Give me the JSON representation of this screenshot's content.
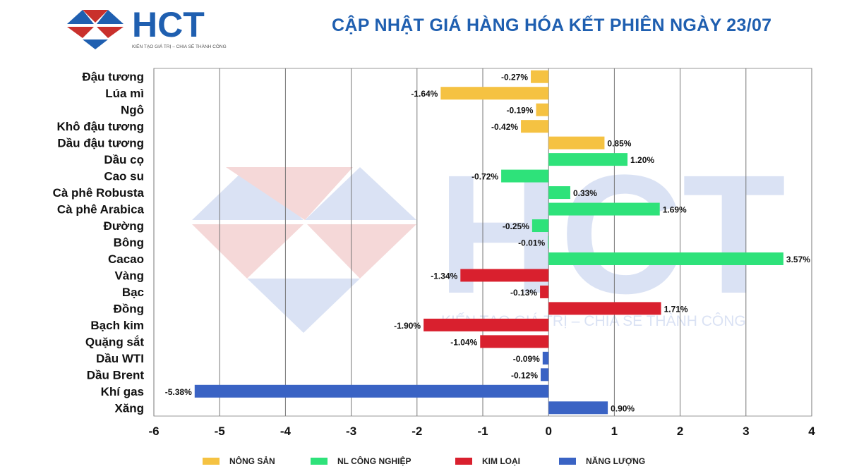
{
  "header": {
    "title": "CẬP NHẬT GIÁ HÀNG HÓA KẾT PHIÊN NGÀY 23/07",
    "logo_text": "HCT",
    "logo_slogan": "KIẾN TẠO GIÁ TRỊ – CHIA SẺ THÀNH CÔNG"
  },
  "watermark": {
    "text": "HCT",
    "slogan": "KIẾN TẠO GIÁ TRỊ – CHIA SẺ THÀNH CÔNG"
  },
  "colors": {
    "nong_san": "#f5c242",
    "nl_cong_nghiep": "#2ee27a",
    "kim_loai": "#d9202e",
    "nang_luong": "#3a63c4",
    "brand": "#1f5fb0",
    "brand_red": "#c9302c"
  },
  "legend": [
    {
      "label": "NÔNG SẢN",
      "group": "nong_san"
    },
    {
      "label": "NL CÔNG NGHIỆP",
      "group": "nl_cong_nghiep"
    },
    {
      "label": "KIM LOẠI",
      "group": "kim_loai"
    },
    {
      "label": "NĂNG LƯỢNG",
      "group": "nang_luong"
    }
  ],
  "chart_data": {
    "type": "bar",
    "orientation": "horizontal",
    "title": "CẬP NHẬT GIÁ HÀNG HÓA KẾT PHIÊN NGÀY 23/07",
    "xlabel": "",
    "ylabel": "",
    "xlim": [
      -6,
      4
    ],
    "xticks": [
      -6,
      -5,
      -4,
      -3,
      -2,
      -1,
      0,
      1,
      2,
      3,
      4
    ],
    "grid": "vertical",
    "legend_position": "bottom",
    "unit": "%",
    "categories": [
      "Đậu tương",
      "Lúa mì",
      "Ngô",
      "Khô đậu tương",
      "Dầu đậu tương",
      "Dầu cọ",
      "Cao su",
      "Cà phê Robusta",
      "Cà phê Arabica",
      "Đường",
      "Bông",
      "Cacao",
      "Vàng",
      "Bạc",
      "Đồng",
      "Bạch kim",
      "Quặng sắt",
      "Dầu WTI",
      "Dầu Brent",
      "Khí gas",
      "Xăng"
    ],
    "values": [
      -0.27,
      -1.64,
      -0.19,
      -0.42,
      0.85,
      1.2,
      -0.72,
      0.33,
      1.69,
      -0.25,
      -0.01,
      3.57,
      -1.34,
      -0.13,
      1.71,
      -1.9,
      -1.04,
      -0.09,
      -0.12,
      -5.38,
      0.9
    ],
    "labels": [
      "-0.27%",
      "-1.64%",
      "-0.19%",
      "-0.42%",
      "0.85%",
      "1.20%",
      "-0.72%",
      "0.33%",
      "1.69%",
      "-0.25%",
      "-0.01%",
      "3.57%",
      "-1.34%",
      "-0.13%",
      "1.71%",
      "-1.90%",
      "-1.04%",
      "-0.09%",
      "-0.12%",
      "-5.38%",
      "0.90%"
    ],
    "groups": [
      "nong_san",
      "nong_san",
      "nong_san",
      "nong_san",
      "nong_san",
      "nl_cong_nghiep",
      "nl_cong_nghiep",
      "nl_cong_nghiep",
      "nl_cong_nghiep",
      "nl_cong_nghiep",
      "nl_cong_nghiep",
      "nl_cong_nghiep",
      "kim_loai",
      "kim_loai",
      "kim_loai",
      "kim_loai",
      "kim_loai",
      "nang_luong",
      "nang_luong",
      "nang_luong",
      "nang_luong"
    ]
  }
}
